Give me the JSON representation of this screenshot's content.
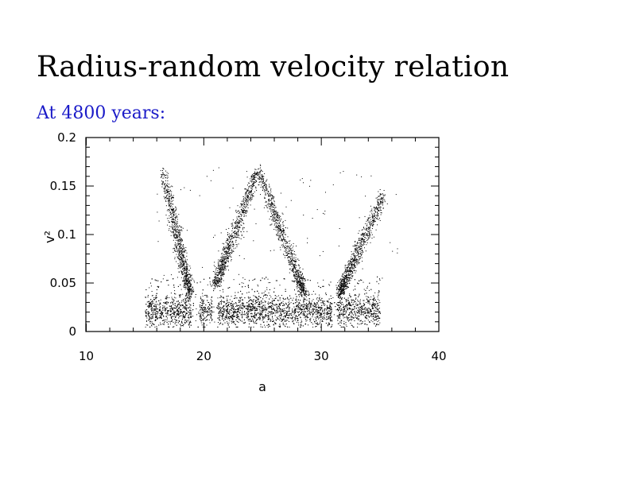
{
  "slide": {
    "title": "Radius-random velocity relation",
    "subtitle": "At 4800 years:"
  },
  "colors": {
    "subtitle": "#1a1ac8",
    "points": "#000000",
    "axes": "#000000",
    "background": "#ffffff"
  },
  "chart_data": {
    "type": "scatter",
    "title": "",
    "xlabel": "a",
    "ylabel": "v²",
    "xlim": [
      10,
      40
    ],
    "ylim": [
      0,
      0.2
    ],
    "xticks": [
      10,
      20,
      30,
      40
    ],
    "xtick_labels": [
      "10",
      "20",
      "30",
      "40"
    ],
    "yticks": [
      0,
      0.05,
      0.1,
      0.15,
      0.2
    ],
    "ytick_labels": [
      "0",
      "0.05",
      "0.1",
      "0.15",
      "0.2"
    ],
    "x_minor_step": 2,
    "y_minor_step": 0.01,
    "grid": false,
    "legend": "none",
    "marker": "dot",
    "series": [
      {
        "description": "dense disk band",
        "x_range": [
          15,
          35
        ],
        "y_range": [
          0.005,
          0.045
        ],
        "gaps": [
          [
            18.9,
            19.6
          ],
          [
            20.7,
            21.1
          ],
          [
            30.9,
            31.3
          ]
        ]
      },
      {
        "description": "resonance streaks (envelope points a, v²)",
        "ridges": [
          [
            [
              16.5,
              0.165
            ],
            [
              18.8,
              0.04
            ]
          ],
          [
            [
              21.0,
              0.05
            ],
            [
              24.5,
              0.165
            ]
          ],
          [
            [
              24.7,
              0.165
            ],
            [
              28.5,
              0.04
            ]
          ],
          [
            [
              31.5,
              0.04
            ],
            [
              35.2,
              0.14
            ]
          ]
        ]
      }
    ]
  }
}
